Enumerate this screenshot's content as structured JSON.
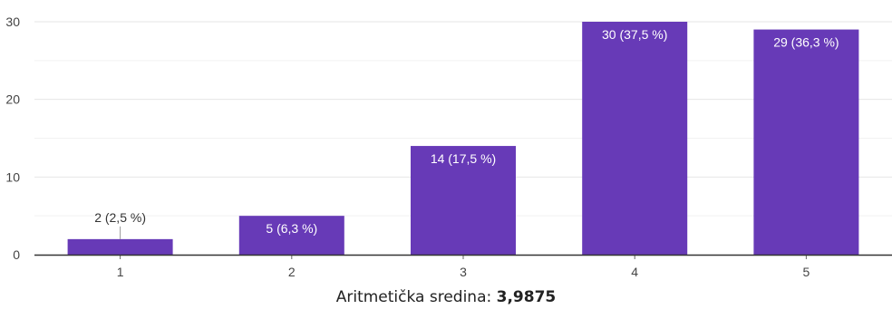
{
  "chart_data": {
    "type": "bar",
    "categories": [
      "1",
      "2",
      "3",
      "4",
      "5"
    ],
    "values": [
      2,
      5,
      14,
      30,
      29
    ],
    "data_labels": [
      "2 (2,5 %)",
      "5 (6,3 %)",
      "14 (17,5 %)",
      "30 (37,5 %)",
      "29 (36,3 %)"
    ],
    "y_ticks": [
      0,
      10,
      20,
      30
    ],
    "ylim": [
      0,
      30
    ],
    "grid": true,
    "bar_color": "#673ab7",
    "grid_color": "#e6e6e6",
    "axis_color": "#333333"
  },
  "caption": {
    "label": "Aritmetička sredina:",
    "value": "3,9875"
  }
}
